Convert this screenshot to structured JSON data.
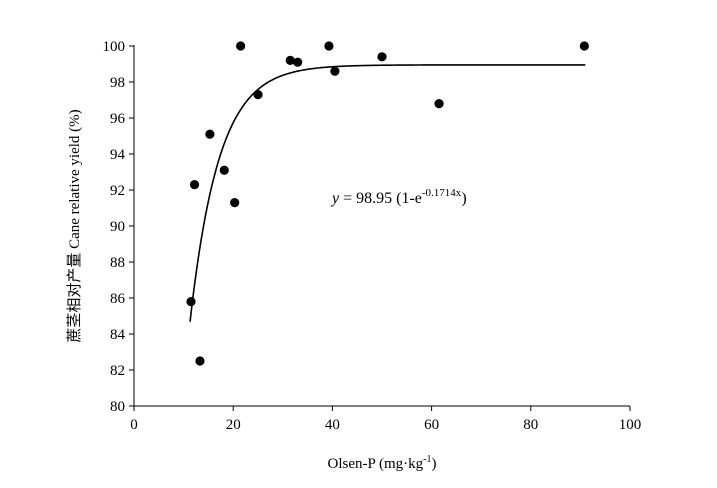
{
  "chart_data": {
    "type": "scatter",
    "xlabel_main": "Olsen-P (mg·kg",
    "xlabel_sup": "-1",
    "xlabel_end": ")",
    "ylabel": "蔗茎相对产量 Cane relative yield (%)",
    "xlim": [
      0,
      100
    ],
    "ylim": [
      80,
      100
    ],
    "x_ticks": [
      0,
      20,
      40,
      60,
      80,
      100
    ],
    "y_ticks": [
      80,
      82,
      84,
      86,
      88,
      90,
      92,
      94,
      96,
      98,
      100
    ],
    "grid": false,
    "points": [
      {
        "x": 11.5,
        "y": 85.8
      },
      {
        "x": 12.2,
        "y": 92.3
      },
      {
        "x": 13.3,
        "y": 82.5
      },
      {
        "x": 15.3,
        "y": 95.1
      },
      {
        "x": 18.2,
        "y": 93.1
      },
      {
        "x": 20.3,
        "y": 91.3
      },
      {
        "x": 21.5,
        "y": 100.0
      },
      {
        "x": 25.0,
        "y": 97.3
      },
      {
        "x": 31.5,
        "y": 99.2
      },
      {
        "x": 33.0,
        "y": 99.1
      },
      {
        "x": 39.3,
        "y": 100.0
      },
      {
        "x": 40.5,
        "y": 98.6
      },
      {
        "x": 50.0,
        "y": 99.4
      },
      {
        "x": 61.5,
        "y": 96.8
      },
      {
        "x": 90.8,
        "y": 100.0
      }
    ],
    "fit": {
      "a": 98.95,
      "b": 0.1714,
      "x_range": [
        11.3,
        91
      ]
    },
    "equation": {
      "lhs": "y",
      "rhs": " = 98.95 (1-e",
      "exponent": "-0.1714x",
      "close": ")"
    }
  }
}
